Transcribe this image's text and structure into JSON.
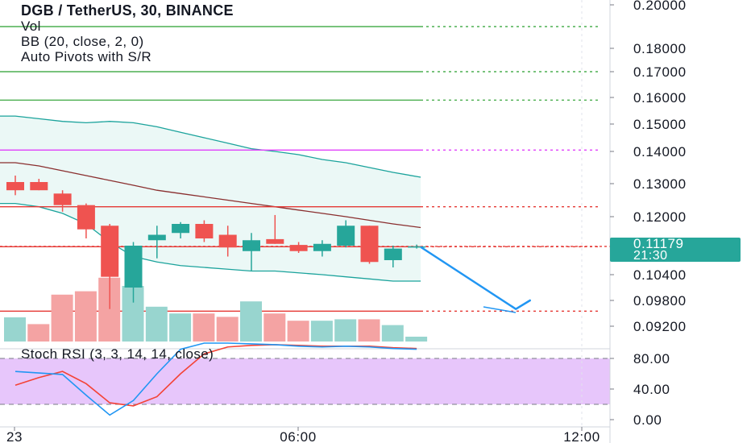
{
  "legend": {
    "title": "DGB / TetherUS, 30, BINANCE",
    "indicators": [
      "Vol",
      "BB (20, close, 2, 0)",
      "Auto Pivots with S/R"
    ]
  },
  "price_badge": {
    "price": "0.11179",
    "countdown": "21:30",
    "color": "#26a69a"
  },
  "colors": {
    "up": "#26a69a",
    "down": "#ef5350",
    "vol_up": "#98d5cf",
    "vol_down": "#f4a3a3",
    "bb_band": "#1ba39c",
    "bb_basis": "#8a2f2f",
    "bb_fill": "#e9f7f5",
    "pivot_green": "#4caf50",
    "pivot_magenta": "#e040fb",
    "pivot_red": "#e53935",
    "stoch_k": "#2196f3",
    "stoch_d": "#f44336",
    "stoch_fill": "#e7c6fb",
    "arrow": "#2196f3"
  },
  "chart_data": [
    {
      "type": "candlestick",
      "title": "DGB / TetherUS, 30, BINANCE",
      "y_ticks": [
        "0.20000",
        "0.18000",
        "0.17000",
        "0.16000",
        "0.15000",
        "0.14000",
        "0.13000",
        "0.12000",
        "0.10400",
        "0.09800",
        "0.09200"
      ],
      "x_ticks": [
        "23",
        "06:00",
        "12:00"
      ],
      "candles": [
        {
          "o": 0.1305,
          "h": 0.1325,
          "l": 0.1265,
          "c": 0.128
        },
        {
          "o": 0.1305,
          "h": 0.1315,
          "l": 0.128,
          "c": 0.128
        },
        {
          "o": 0.127,
          "h": 0.128,
          "l": 0.1215,
          "c": 0.1235
        },
        {
          "o": 0.1235,
          "h": 0.124,
          "l": 0.114,
          "c": 0.1165
        },
        {
          "o": 0.1175,
          "h": 0.118,
          "l": 0.096,
          "c": 0.1035
        },
        {
          "o": 0.101,
          "h": 0.113,
          "l": 0.0975,
          "c": 0.112
        },
        {
          "o": 0.1135,
          "h": 0.1175,
          "l": 0.1085,
          "c": 0.115
        },
        {
          "o": 0.1155,
          "h": 0.1185,
          "l": 0.114,
          "c": 0.118
        },
        {
          "o": 0.118,
          "h": 0.119,
          "l": 0.113,
          "c": 0.114
        },
        {
          "o": 0.115,
          "h": 0.1175,
          "l": 0.109,
          "c": 0.1115
        },
        {
          "o": 0.1105,
          "h": 0.1155,
          "l": 0.105,
          "c": 0.1135
        },
        {
          "o": 0.1138,
          "h": 0.1205,
          "l": 0.1125,
          "c": 0.1125
        },
        {
          "o": 0.1122,
          "h": 0.113,
          "l": 0.11,
          "c": 0.1105
        },
        {
          "o": 0.1105,
          "h": 0.1135,
          "l": 0.109,
          "c": 0.1125
        },
        {
          "o": 0.112,
          "h": 0.119,
          "l": 0.1115,
          "c": 0.1175
        },
        {
          "o": 0.1175,
          "h": 0.1175,
          "l": 0.107,
          "c": 0.1075
        },
        {
          "o": 0.108,
          "h": 0.112,
          "l": 0.106,
          "c": 0.1112
        },
        {
          "o": 0.1118,
          "h": 0.1123,
          "l": 0.1112,
          "c": 0.1118
        }
      ],
      "volume": [
        {
          "v": 0.5,
          "up": true
        },
        {
          "v": 0.36,
          "up": false
        },
        {
          "v": 0.97,
          "up": false
        },
        {
          "v": 1.04,
          "up": false
        },
        {
          "v": 1.32,
          "up": false
        },
        {
          "v": 1.15,
          "up": true
        },
        {
          "v": 0.72,
          "up": true
        },
        {
          "v": 0.58,
          "up": true
        },
        {
          "v": 0.58,
          "up": false
        },
        {
          "v": 0.51,
          "up": false
        },
        {
          "v": 0.83,
          "up": true
        },
        {
          "v": 0.58,
          "up": false
        },
        {
          "v": 0.43,
          "up": false
        },
        {
          "v": 0.43,
          "up": true
        },
        {
          "v": 0.46,
          "up": true
        },
        {
          "v": 0.46,
          "up": false
        },
        {
          "v": 0.34,
          "up": true
        },
        {
          "v": 0.1,
          "up": true
        }
      ],
      "bb_upper": [
        0.153,
        0.152,
        0.151,
        0.1505,
        0.151,
        0.1505,
        0.149,
        0.147,
        0.145,
        0.143,
        0.141,
        0.14,
        0.139,
        0.1375,
        0.1365,
        0.135,
        0.1335,
        0.132
      ],
      "bb_basis": [
        0.1365,
        0.1355,
        0.134,
        0.1325,
        0.131,
        0.1295,
        0.128,
        0.127,
        0.126,
        0.125,
        0.124,
        0.123,
        0.122,
        0.121,
        0.12,
        0.119,
        0.118,
        0.117
      ],
      "bb_lower": [
        0.124,
        0.123,
        0.121,
        0.118,
        0.113,
        0.109,
        0.1075,
        0.1065,
        0.106,
        0.1055,
        0.105,
        0.105,
        0.1045,
        0.104,
        0.1035,
        0.103,
        0.1025,
        0.1025
      ],
      "pivot_levels": [
        {
          "price": 0.19,
          "color": "green",
          "style": "dotted"
        },
        {
          "price": 0.17,
          "color": "green",
          "style": "dotted"
        },
        {
          "price": 0.159,
          "color": "green",
          "style": "dotted"
        },
        {
          "price": 0.1405,
          "color": "magenta",
          "style": "dotted"
        },
        {
          "price": 0.123,
          "color": "red",
          "style": "dotted"
        },
        {
          "price": 0.1117,
          "color": "red",
          "style": "dotted"
        },
        {
          "price": 0.0955,
          "color": "red",
          "style": "dotted"
        }
      ],
      "projection_arrow": [
        {
          "index": 17.2,
          "price": 0.1115
        },
        {
          "index": 21.2,
          "price": 0.096
        },
        {
          "index": 21.8,
          "price": 0.098
        }
      ],
      "stoch_rsi": {
        "label": "Stoch RSI (3, 3, 14, 14, close)",
        "y_ticks": [
          "80.00",
          "40.00",
          "0.00"
        ],
        "k": [
          63,
          61,
          59,
          32,
          6,
          25,
          60,
          92,
          100,
          100,
          99,
          98,
          96,
          95,
          96,
          95,
          93,
          92
        ],
        "d": [
          45,
          55,
          63,
          47,
          22,
          18,
          30,
          60,
          86,
          95,
          97,
          98,
          97,
          96,
          96,
          96,
          94,
          93
        ],
        "upper": 80,
        "lower": 20
      }
    }
  ]
}
